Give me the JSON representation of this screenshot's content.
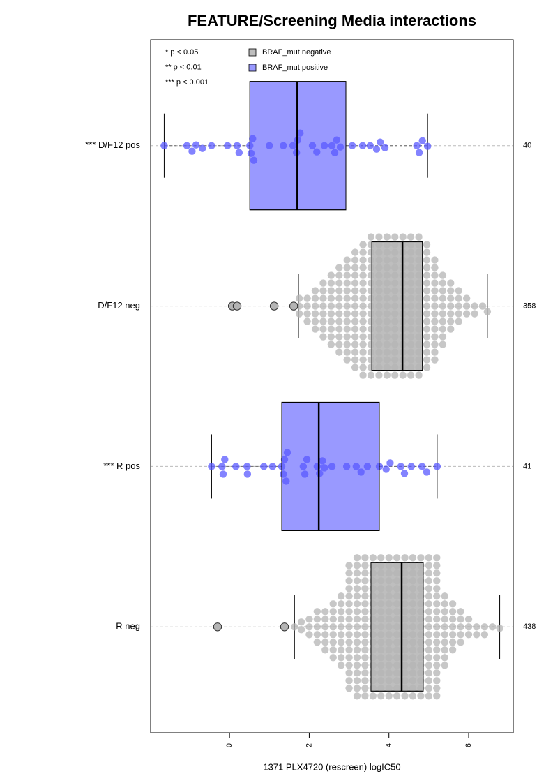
{
  "chart_data": {
    "type": "boxplot",
    "title": "FEATURE/Screening Media interactions",
    "x_label": "1371 PLX4720 (rescreen) logIC50",
    "xlim": [
      -1.98,
      7.12
    ],
    "xticks": [
      0,
      2,
      4,
      6
    ],
    "significance_key": [
      "* p < 0.05",
      "** p < 0.01",
      "*** p < 0.001"
    ],
    "series": [
      {
        "name": "BRAF_mut negative",
        "color": "#bebebe"
      },
      {
        "name": "BRAF_mut positive",
        "color": "#9999ff"
      }
    ],
    "categories": [
      "*** D/F12 pos",
      "D/F12 neg",
      "*** R pos",
      "R neg"
    ],
    "counts": [
      40,
      358,
      41,
      438
    ],
    "groups": [
      {
        "color": "#9999ff",
        "point_color": "#5a5aff",
        "whisker_low": -1.64,
        "q1": 0.51,
        "median": 1.7,
        "q3": 2.92,
        "whisker_high": 4.97,
        "outliers": [],
        "points": [
          -1.64,
          -1.07,
          -0.94,
          -0.84,
          -0.68,
          -0.45,
          -0.05,
          0.19,
          0.24,
          0.51,
          0.54,
          0.58,
          0.61,
          1.0,
          1.35,
          1.59,
          1.68,
          1.71,
          1.77,
          2.08,
          2.19,
          2.38,
          2.57,
          2.64,
          2.69,
          2.78,
          3.08,
          3.34,
          3.53,
          3.69,
          3.78,
          3.9,
          4.7,
          4.76,
          4.84,
          4.97
        ]
      },
      {
        "color": "#bebebe",
        "point_color": "#b4b4b4",
        "whisker_low": 1.73,
        "q1": 3.57,
        "median": 4.34,
        "q3": 4.84,
        "whisker_high": 6.47,
        "outliers": [
          0.07,
          0.19,
          1.12,
          1.61
        ],
        "points": [
          1.75,
          1.75,
          1.75,
          1.95,
          1.95,
          1.95,
          1.95,
          2.15,
          2.15,
          2.15,
          2.15,
          2.15,
          2.15,
          2.35,
          2.35,
          2.35,
          2.35,
          2.35,
          2.35,
          2.35,
          2.35,
          2.55,
          2.55,
          2.55,
          2.55,
          2.55,
          2.55,
          2.55,
          2.55,
          2.55,
          2.55,
          2.75,
          2.75,
          2.75,
          2.75,
          2.75,
          2.75,
          2.75,
          2.75,
          2.75,
          2.75,
          2.75,
          2.75,
          2.95,
          2.95,
          2.95,
          2.95,
          2.95,
          2.95,
          2.95,
          2.95,
          2.95,
          2.95,
          2.95,
          2.95,
          2.95,
          2.95,
          3.15,
          3.15,
          3.15,
          3.15,
          3.15,
          3.15,
          3.15,
          3.15,
          3.15,
          3.15,
          3.15,
          3.15,
          3.15,
          3.15,
          3.15,
          3.15,
          3.35,
          3.35,
          3.35,
          3.35,
          3.35,
          3.35,
          3.35,
          3.35,
          3.35,
          3.35,
          3.35,
          3.35,
          3.35,
          3.35,
          3.35,
          3.35,
          3.35,
          3.35,
          3.55,
          3.55,
          3.55,
          3.55,
          3.55,
          3.55,
          3.55,
          3.55,
          3.55,
          3.55,
          3.55,
          3.55,
          3.55,
          3.55,
          3.55,
          3.55,
          3.55,
          3.55,
          3.55,
          3.75,
          3.75,
          3.75,
          3.75,
          3.75,
          3.75,
          3.75,
          3.75,
          3.75,
          3.75,
          3.75,
          3.75,
          3.75,
          3.75,
          3.75,
          3.75,
          3.75,
          3.75,
          3.75,
          3.95,
          3.95,
          3.95,
          3.95,
          3.95,
          3.95,
          3.95,
          3.95,
          3.95,
          3.95,
          3.95,
          3.95,
          3.95,
          3.95,
          3.95,
          3.95,
          3.95,
          3.95,
          3.95,
          4.15,
          4.15,
          4.15,
          4.15,
          4.15,
          4.15,
          4.15,
          4.15,
          4.15,
          4.15,
          4.15,
          4.15,
          4.15,
          4.15,
          4.15,
          4.15,
          4.15,
          4.15,
          4.15,
          4.35,
          4.35,
          4.35,
          4.35,
          4.35,
          4.35,
          4.35,
          4.35,
          4.35,
          4.35,
          4.35,
          4.35,
          4.35,
          4.35,
          4.35,
          4.35,
          4.35,
          4.35,
          4.35,
          4.55,
          4.55,
          4.55,
          4.55,
          4.55,
          4.55,
          4.55,
          4.55,
          4.55,
          4.55,
          4.55,
          4.55,
          4.55,
          4.55,
          4.55,
          4.55,
          4.55,
          4.55,
          4.55,
          4.75,
          4.75,
          4.75,
          4.75,
          4.75,
          4.75,
          4.75,
          4.75,
          4.75,
          4.75,
          4.75,
          4.75,
          4.75,
          4.75,
          4.75,
          4.75,
          4.75,
          4.75,
          4.75,
          4.95,
          4.95,
          4.95,
          4.95,
          4.95,
          4.95,
          4.95,
          4.95,
          4.95,
          4.95,
          4.95,
          4.95,
          4.95,
          4.95,
          4.95,
          4.95,
          4.95,
          5.15,
          5.15,
          5.15,
          5.15,
          5.15,
          5.15,
          5.15,
          5.15,
          5.15,
          5.15,
          5.15,
          5.15,
          5.15,
          5.15,
          5.35,
          5.35,
          5.35,
          5.35,
          5.35,
          5.35,
          5.35,
          5.35,
          5.35,
          5.35,
          5.55,
          5.55,
          5.55,
          5.55,
          5.55,
          5.55,
          5.55,
          5.75,
          5.75,
          5.75,
          5.75,
          5.75,
          5.95,
          5.95,
          5.95,
          6.15,
          6.15,
          6.35,
          6.47
        ]
      },
      {
        "color": "#9999ff",
        "point_color": "#5a5aff",
        "whisker_low": -0.45,
        "q1": 1.31,
        "median": 2.24,
        "q3": 3.76,
        "whisker_high": 5.21,
        "outliers": [],
        "points": [
          -0.45,
          -0.19,
          -0.16,
          -0.12,
          0.16,
          0.44,
          0.45,
          0.86,
          1.08,
          1.31,
          1.35,
          1.38,
          1.42,
          1.45,
          1.85,
          1.89,
          1.94,
          2.2,
          2.26,
          2.33,
          2.38,
          2.57,
          2.94,
          3.18,
          3.3,
          3.46,
          3.76,
          3.93,
          4.03,
          4.3,
          4.39,
          4.56,
          4.83,
          4.95,
          5.21
        ]
      },
      {
        "color": "#bebebe",
        "point_color": "#b4b4b4",
        "whisker_low": 1.63,
        "q1": 3.55,
        "median": 4.32,
        "q3": 4.86,
        "whisker_high": 6.78,
        "outliers": [
          -0.3,
          1.38
        ],
        "points": [
          1.63,
          1.8,
          1.8,
          2.0,
          2.0,
          2.0,
          2.2,
          2.2,
          2.2,
          2.2,
          2.2,
          2.4,
          2.4,
          2.4,
          2.4,
          2.4,
          2.4,
          2.6,
          2.6,
          2.6,
          2.6,
          2.6,
          2.6,
          2.6,
          2.6,
          2.8,
          2.8,
          2.8,
          2.8,
          2.8,
          2.8,
          2.8,
          2.8,
          2.8,
          2.8,
          3.0,
          3.0,
          3.0,
          3.0,
          3.0,
          3.0,
          3.0,
          3.0,
          3.0,
          3.0,
          3.0,
          3.0,
          3.0,
          3.0,
          3.0,
          3.0,
          3.0,
          3.2,
          3.2,
          3.2,
          3.2,
          3.2,
          3.2,
          3.2,
          3.2,
          3.2,
          3.2,
          3.2,
          3.2,
          3.2,
          3.2,
          3.2,
          3.2,
          3.2,
          3.2,
          3.2,
          3.4,
          3.4,
          3.4,
          3.4,
          3.4,
          3.4,
          3.4,
          3.4,
          3.4,
          3.4,
          3.4,
          3.4,
          3.4,
          3.4,
          3.4,
          3.4,
          3.4,
          3.4,
          3.4,
          3.6,
          3.6,
          3.6,
          3.6,
          3.6,
          3.6,
          3.6,
          3.6,
          3.6,
          3.6,
          3.6,
          3.6,
          3.6,
          3.6,
          3.6,
          3.6,
          3.6,
          3.6,
          3.6,
          3.8,
          3.8,
          3.8,
          3.8,
          3.8,
          3.8,
          3.8,
          3.8,
          3.8,
          3.8,
          3.8,
          3.8,
          3.8,
          3.8,
          3.8,
          3.8,
          3.8,
          3.8,
          3.8,
          4.0,
          4.0,
          4.0,
          4.0,
          4.0,
          4.0,
          4.0,
          4.0,
          4.0,
          4.0,
          4.0,
          4.0,
          4.0,
          4.0,
          4.0,
          4.0,
          4.0,
          4.0,
          4.0,
          4.2,
          4.2,
          4.2,
          4.2,
          4.2,
          4.2,
          4.2,
          4.2,
          4.2,
          4.2,
          4.2,
          4.2,
          4.2,
          4.2,
          4.2,
          4.2,
          4.2,
          4.2,
          4.2,
          4.4,
          4.4,
          4.4,
          4.4,
          4.4,
          4.4,
          4.4,
          4.4,
          4.4,
          4.4,
          4.4,
          4.4,
          4.4,
          4.4,
          4.4,
          4.4,
          4.4,
          4.4,
          4.4,
          4.6,
          4.6,
          4.6,
          4.6,
          4.6,
          4.6,
          4.6,
          4.6,
          4.6,
          4.6,
          4.6,
          4.6,
          4.6,
          4.6,
          4.6,
          4.6,
          4.6,
          4.6,
          4.6,
          4.8,
          4.8,
          4.8,
          4.8,
          4.8,
          4.8,
          4.8,
          4.8,
          4.8,
          4.8,
          4.8,
          4.8,
          4.8,
          4.8,
          4.8,
          4.8,
          4.8,
          4.8,
          4.8,
          5.0,
          5.0,
          5.0,
          5.0,
          5.0,
          5.0,
          5.0,
          5.0,
          5.0,
          5.0,
          5.0,
          5.0,
          5.0,
          5.0,
          5.0,
          5.0,
          5.0,
          5.0,
          5.0,
          5.2,
          5.2,
          5.2,
          5.2,
          5.2,
          5.2,
          5.2,
          5.2,
          5.2,
          5.2,
          5.2,
          5.2,
          5.2,
          5.2,
          5.2,
          5.2,
          5.2,
          5.2,
          5.2,
          5.4,
          5.4,
          5.4,
          5.4,
          5.4,
          5.4,
          5.4,
          5.4,
          5.4,
          5.4,
          5.6,
          5.6,
          5.6,
          5.6,
          5.6,
          5.6,
          5.6,
          5.8,
          5.8,
          5.8,
          5.8,
          5.8,
          6.0,
          6.0,
          6.0,
          6.2,
          6.2,
          6.4,
          6.4,
          6.6,
          6.78
        ]
      }
    ]
  }
}
